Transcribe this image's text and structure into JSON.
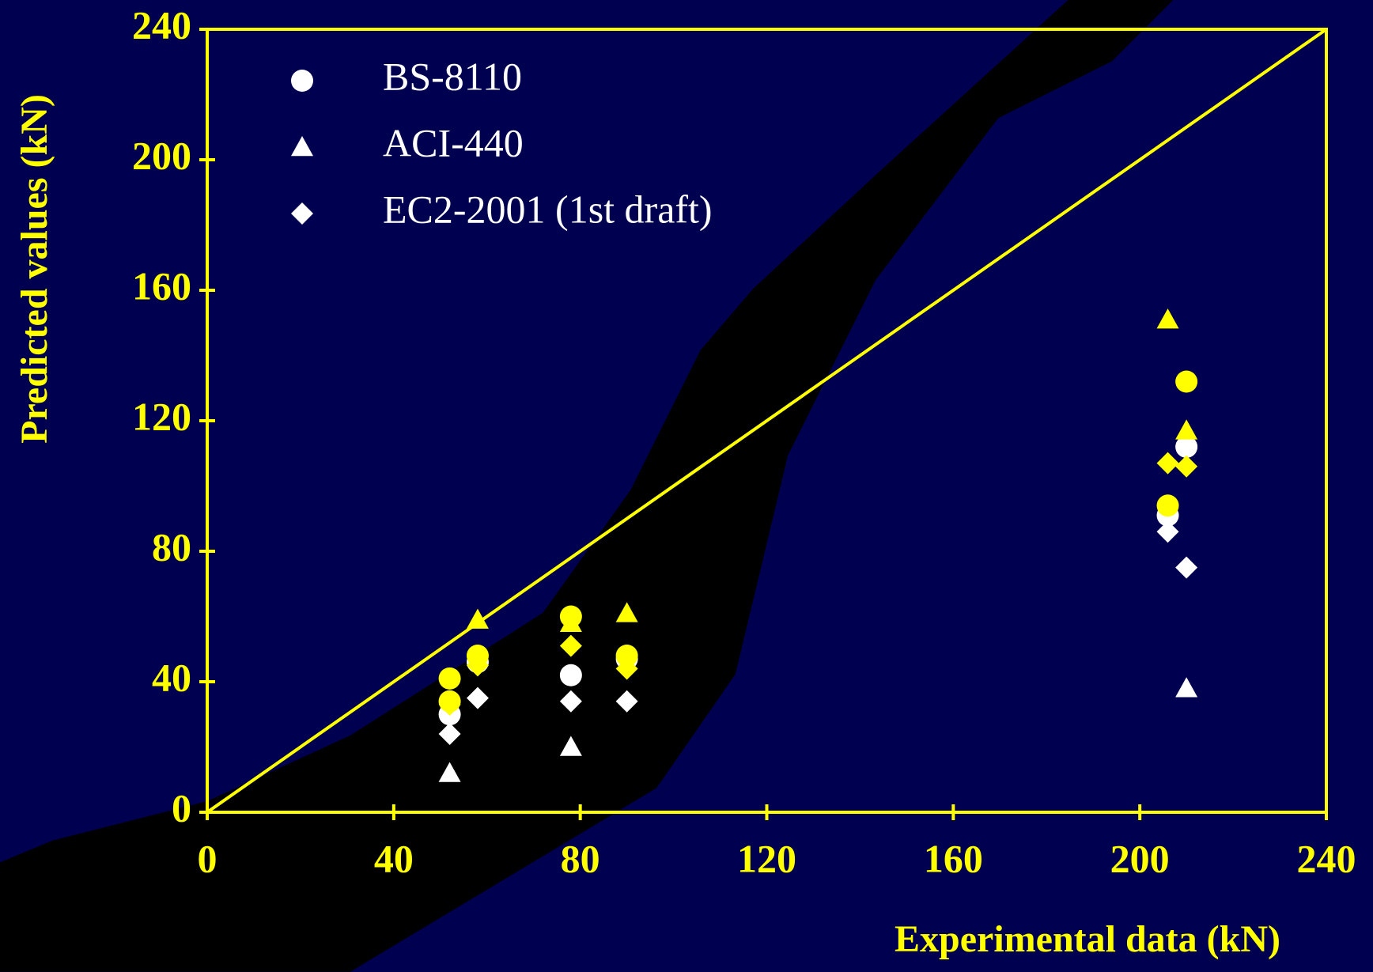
{
  "chart_data": {
    "type": "scatter",
    "x_label": "Experimental data (kN)",
    "y_label": "Predicted values (kN)",
    "xlim": [
      0,
      240
    ],
    "ylim": [
      0,
      240
    ],
    "xticks": [
      0,
      40,
      80,
      120,
      160,
      200,
      240
    ],
    "yticks": [
      0,
      40,
      80,
      120,
      160,
      200,
      240
    ],
    "diagonal": true,
    "axis_color": "#ffff00",
    "series": [
      {
        "name": "BS-8110",
        "marker": "circle",
        "color": "#ffffff",
        "x": [
          52,
          58,
          78,
          90,
          206,
          210
        ],
        "values": [
          30,
          46,
          42,
          47,
          91,
          112
        ]
      },
      {
        "name": "ACI-440",
        "marker": "triangle",
        "color": "#ffffff",
        "x": [
          52,
          78,
          210
        ],
        "values": [
          12,
          20,
          38
        ]
      },
      {
        "name": "EC2-2001 (1st draft)",
        "marker": "diamond",
        "color": "#ffffff",
        "x": [
          52,
          58,
          78,
          90,
          206,
          210
        ],
        "values": [
          24,
          35,
          34,
          34,
          86,
          75
        ]
      },
      {
        "marker": "circle",
        "color": "#ffff00",
        "x": [
          52,
          52,
          58,
          78,
          90,
          206,
          210
        ],
        "values": [
          41,
          34,
          48,
          60,
          48,
          94,
          132
        ]
      },
      {
        "marker": "triangle",
        "color": "#ffff00",
        "x": [
          58,
          78,
          90,
          206,
          210
        ],
        "values": [
          59,
          58,
          61,
          151,
          117
        ]
      },
      {
        "marker": "diamond",
        "color": "#ffff00",
        "x": [
          52,
          58,
          78,
          90,
          206,
          210
        ],
        "values": [
          33,
          45,
          51,
          44,
          107,
          106
        ]
      }
    ]
  }
}
